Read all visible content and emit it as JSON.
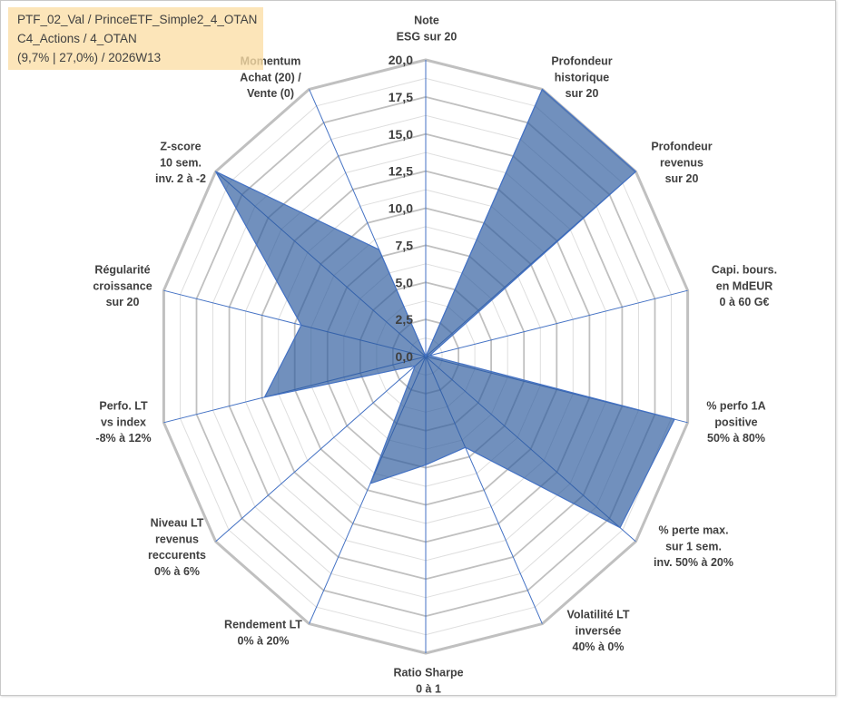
{
  "chart_data": {
    "type": "radar",
    "title": "PTF_02_Val / PrinceETF_Simple2_4_OTAN",
    "subtitle_lines": [
      "C4_Actions / 4_OTAN",
      "(9,7% | 27,0%) / 2026W13"
    ],
    "categories": [
      [
        "Note",
        "ESG sur 20"
      ],
      [
        "Profondeur",
        "historique",
        "sur 20"
      ],
      [
        "Profondeur",
        "revenus",
        "sur 20"
      ],
      [
        "Capi. bours.",
        "en MdEUR",
        "0 à 60 G€"
      ],
      [
        "% perfo 1A",
        "positive",
        "50% à 80%"
      ],
      [
        "% perte max.",
        "sur 1 sem.",
        "inv. 50% à 20%"
      ],
      [
        "Volatilité LT",
        "inversée",
        "40% à 0%"
      ],
      [
        "Ratio Sharpe",
        "0 à 1"
      ],
      [
        "Rendement LT",
        "0% à 20%"
      ],
      [
        "Niveau LT",
        "revenus",
        "reccurents",
        "0% à 6%"
      ],
      [
        "Perfo. LT",
        "vs index",
        "-8% à 12%"
      ],
      [
        "Régularité",
        "croissance",
        "sur 20"
      ],
      [
        "Z-score",
        "10 sem.",
        "inv. 2 à -2"
      ],
      [
        "Momentum",
        "Achat (20) /",
        "Vente (0)"
      ]
    ],
    "values": [
      0,
      20,
      20,
      0.3,
      19,
      18.5,
      6.8,
      7.3,
      9.5,
      1,
      12.3,
      9.5,
      20,
      8
    ],
    "ylim": [
      0,
      20
    ],
    "major_unit": 2.5,
    "ticks": [
      "0,0",
      "2,5",
      "5,0",
      "7,5",
      "10,0",
      "12,5",
      "15,0",
      "17,5",
      "20,0"
    ],
    "grid": true,
    "legend": "none",
    "colors": {
      "series_fill": "#2e5c9e",
      "series_line": "#4472c4",
      "axis_line": "#4472c4",
      "grid_major": "#c0c0c0",
      "grid_minor": "#dedede",
      "text": "#404040",
      "title_box_background": "#fce5b9"
    }
  }
}
